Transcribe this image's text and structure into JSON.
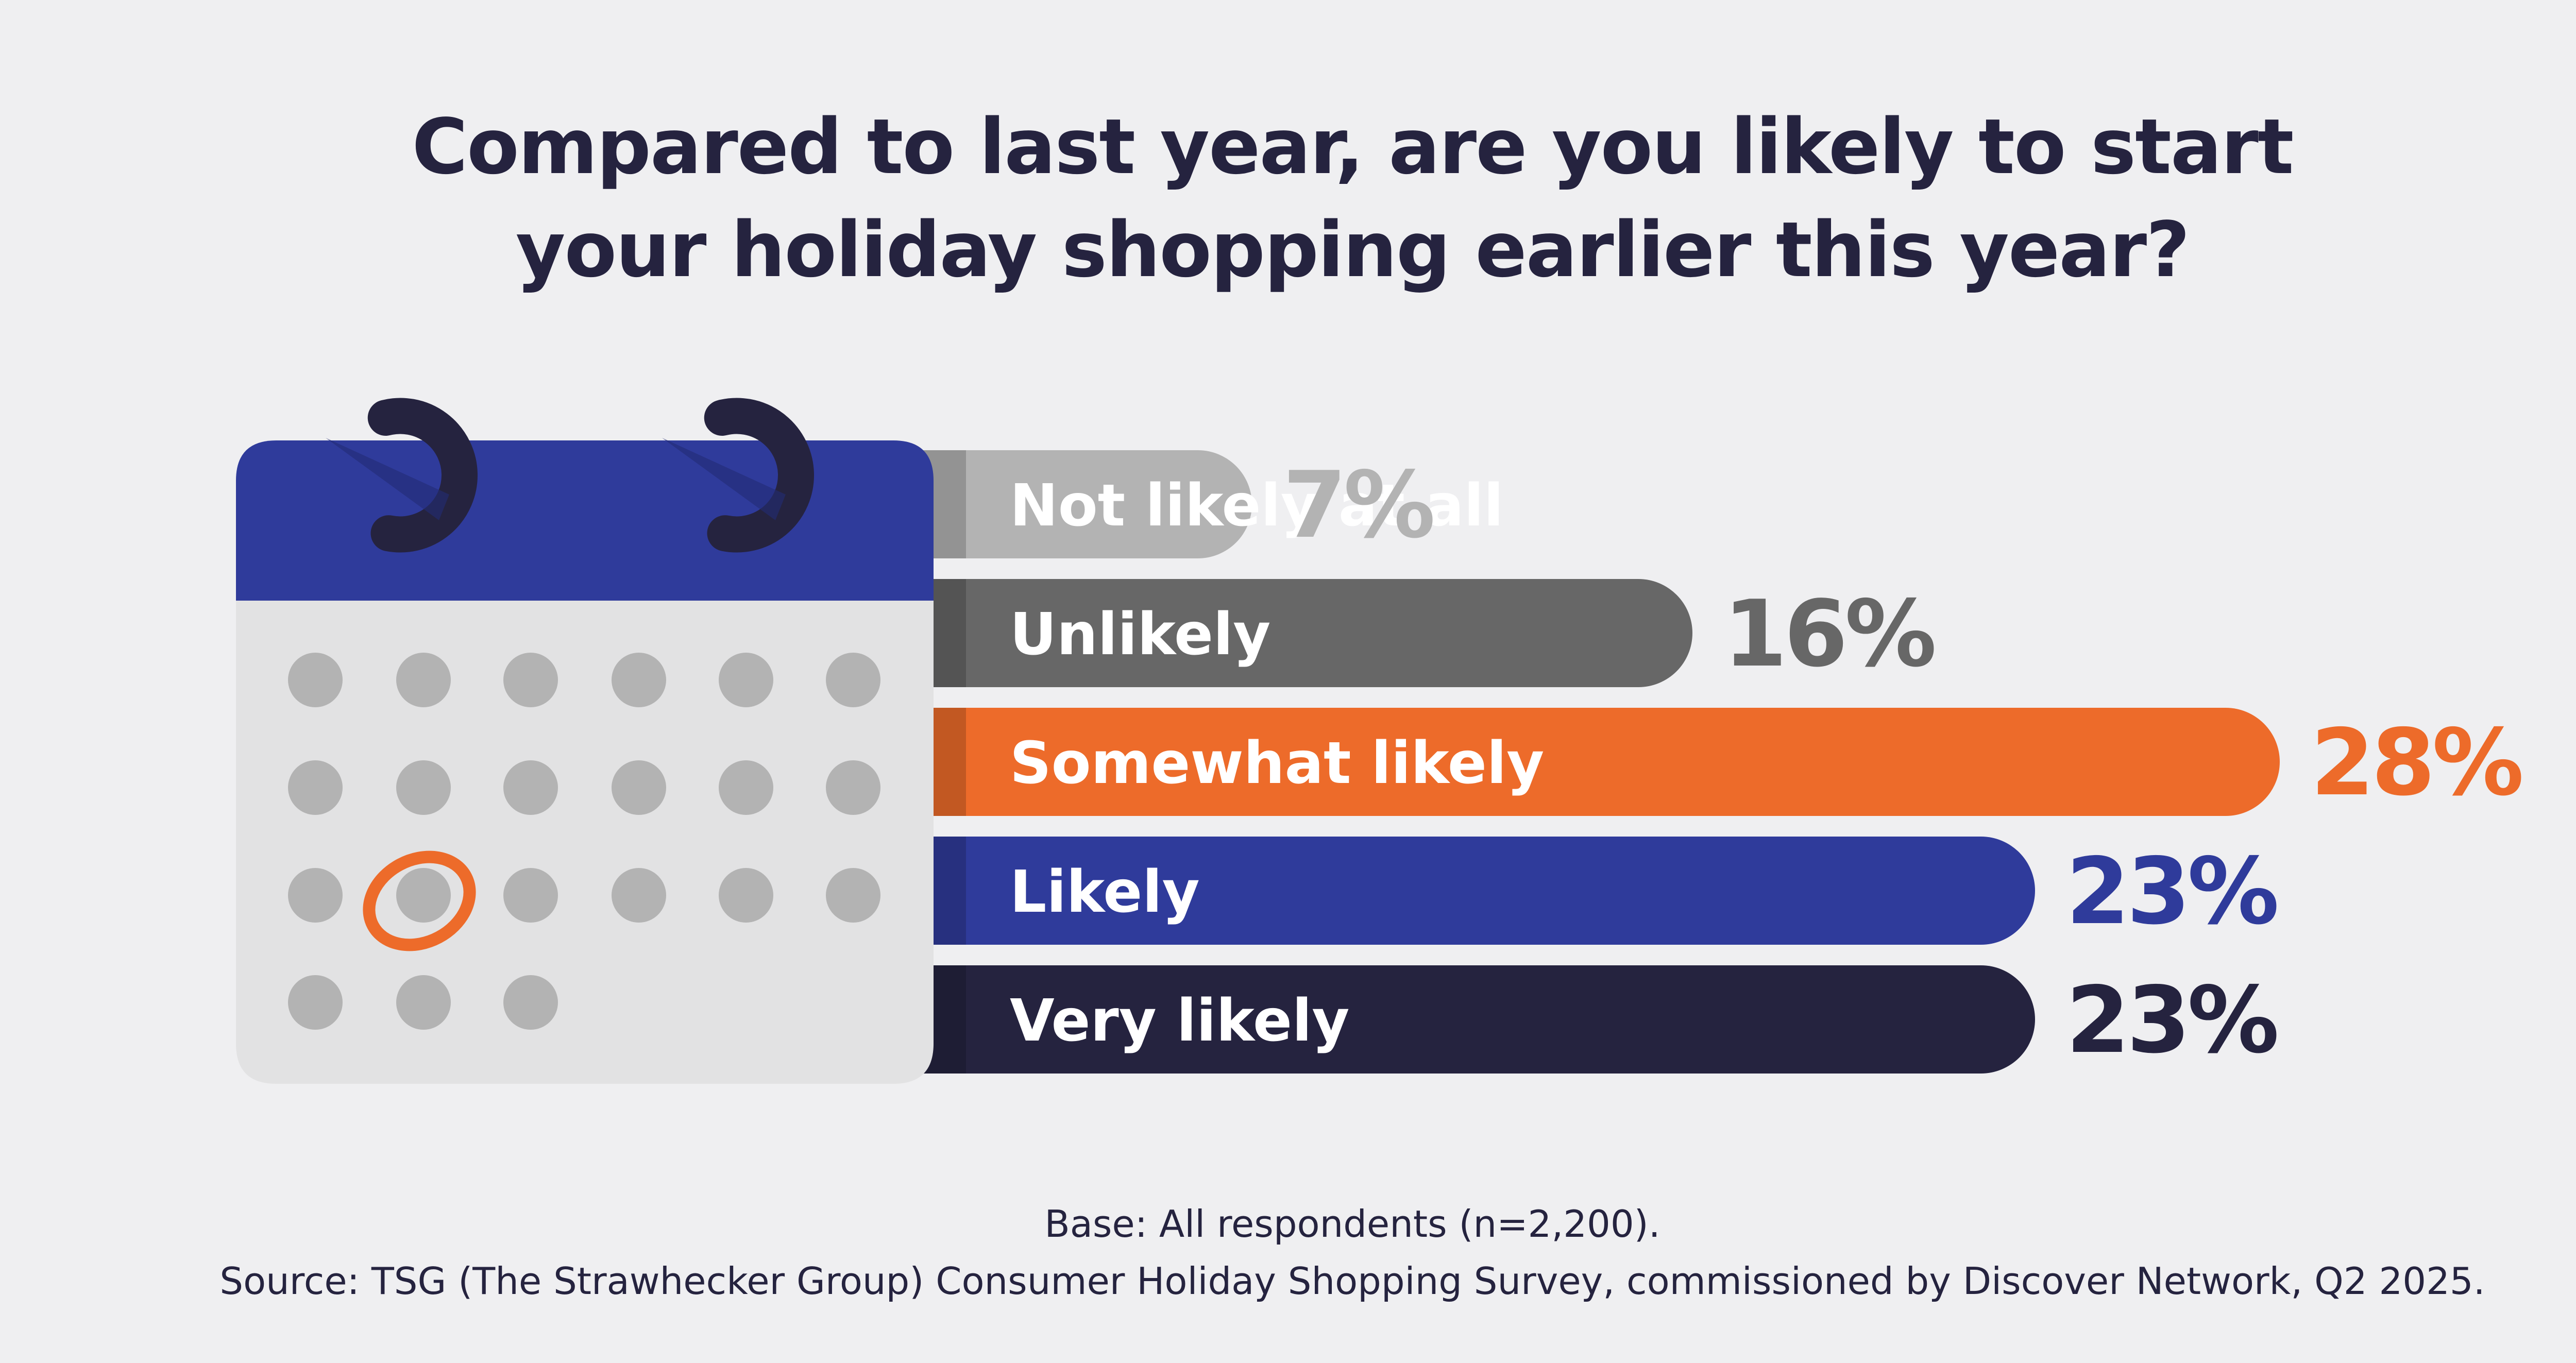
{
  "title_line1": "Compared to last year, are you likely to start",
  "title_line2": "your holiday shopping earlier this year?",
  "base_note": "Base: All respondents (n=2,200).",
  "source_note": "Source: TSG (The Strawhecker Group) Consumer Holiday Shopping Survey, commissioned by Discover Network, Q2 2025.",
  "colors": {
    "background": "#efeff1",
    "calendar_header": "#2f3b9b",
    "calendar_body": "#e2e2e3",
    "calendar_dot": "#b3b3b3",
    "calendar_ring": "#25233f",
    "highlight": "#ed6b2a"
  },
  "icon": "calendar-icon",
  "chart_data": {
    "type": "bar",
    "orientation": "horizontal",
    "title": "Compared to last year, are you likely to start your holiday shopping earlier this year?",
    "categories": [
      "Not likely at all",
      "Unlikely",
      "Somewhat likely",
      "Likely",
      "Very likely"
    ],
    "values": [
      7,
      16,
      28,
      23,
      23
    ],
    "value_labels": [
      "7%",
      "16%",
      "28%",
      "23%",
      "23%"
    ],
    "colors": [
      "#b3b3b3",
      "#676767",
      "#ed6b2a",
      "#2f3b9b",
      "#25233f"
    ],
    "unit": "%",
    "xlim": [
      0,
      28
    ],
    "legend": "none",
    "grid": false
  }
}
